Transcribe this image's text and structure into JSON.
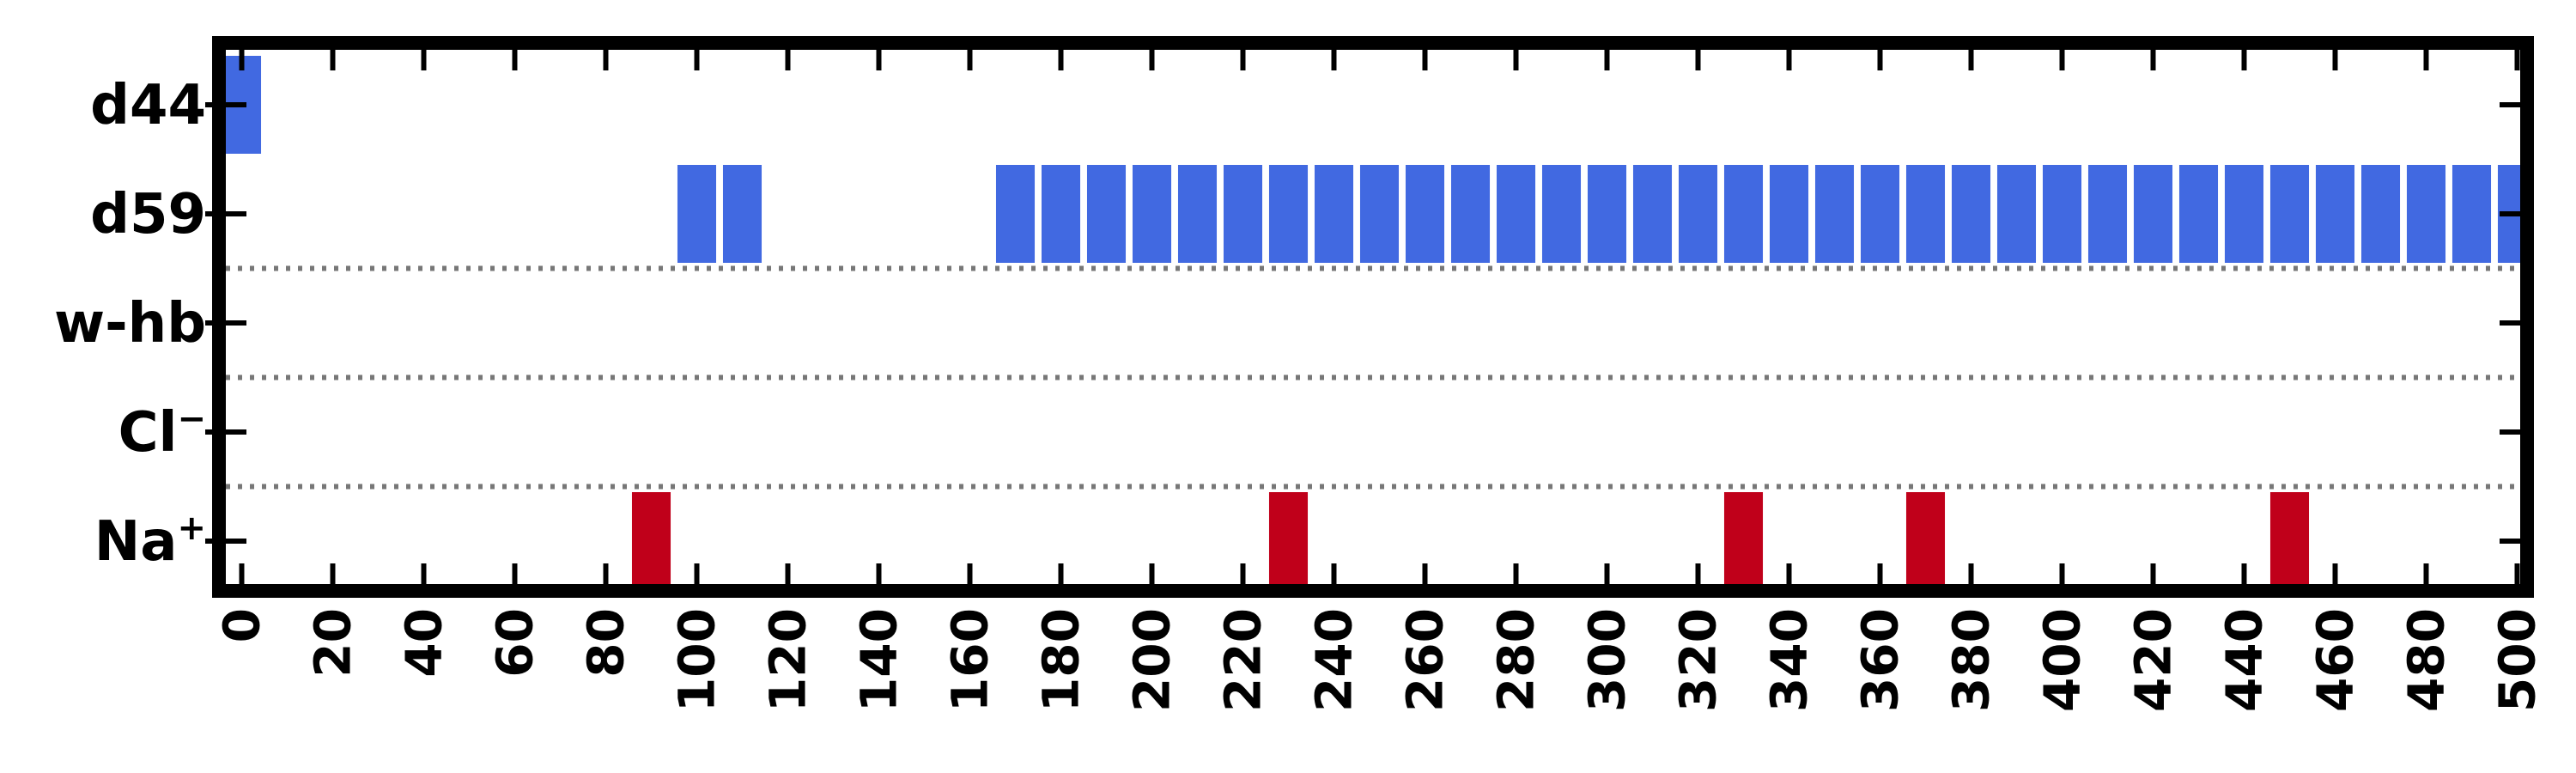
{
  "chart_data": {
    "type": "event-raster",
    "title": "",
    "xlabel": "",
    "ylabel": "",
    "xlim": [
      -3,
      505
    ],
    "xticks": [
      0,
      20,
      40,
      60,
      80,
      100,
      120,
      140,
      160,
      180,
      200,
      220,
      240,
      260,
      280,
      300,
      320,
      340,
      360,
      380,
      400,
      420,
      440,
      460,
      480,
      500
    ],
    "xtick_labels": [
      "0",
      "20",
      "40",
      "60",
      "80",
      "100",
      "120",
      "140",
      "160",
      "180",
      "200",
      "220",
      "240",
      "260",
      "280",
      "300",
      "320",
      "340",
      "360",
      "380",
      "400",
      "420",
      "440",
      "460",
      "480",
      "500"
    ],
    "bar_width": 8.5,
    "separators_after_rows": [
      "d59",
      "w-hb",
      "Cl"
    ],
    "rows": [
      {
        "label": "d44",
        "sup": "",
        "color": "#4169e1",
        "events": [
          0
        ]
      },
      {
        "label": "d59",
        "sup": "",
        "color": "#4169e1",
        "events": [
          100,
          110,
          170,
          180,
          190,
          200,
          210,
          220,
          230,
          240,
          250,
          260,
          270,
          280,
          290,
          300,
          310,
          320,
          330,
          340,
          350,
          360,
          370,
          380,
          390,
          400,
          410,
          420,
          430,
          440,
          450,
          460,
          470,
          480,
          490,
          500
        ]
      },
      {
        "label": "w-hb",
        "sup": "",
        "color": "#4169e1",
        "events": []
      },
      {
        "label": "Cl",
        "sup": "−",
        "color": "#4169e1",
        "events": []
      },
      {
        "label": "Na",
        "sup": "+",
        "color": "#c0001a",
        "events": [
          90,
          230,
          330,
          370,
          450
        ]
      }
    ]
  }
}
